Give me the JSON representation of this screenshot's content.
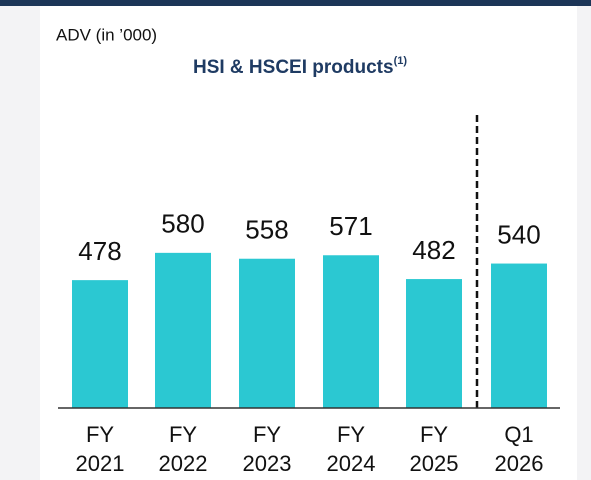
{
  "chart_data": {
    "type": "bar",
    "title": "ADV (in ’000)",
    "subtitle": "HSI & HSCEI products",
    "subtitle_note": "(1)",
    "categories": [
      [
        "FY",
        "2021"
      ],
      [
        "FY",
        "2022"
      ],
      [
        "FY",
        "2023"
      ],
      [
        "FY",
        "2024"
      ],
      [
        "FY",
        "2025"
      ],
      [
        "Q1",
        "2026"
      ]
    ],
    "values": [
      478,
      580,
      558,
      571,
      482,
      540
    ],
    "color": "#2bc8d2",
    "ylim": [
      0,
      600
    ]
  }
}
